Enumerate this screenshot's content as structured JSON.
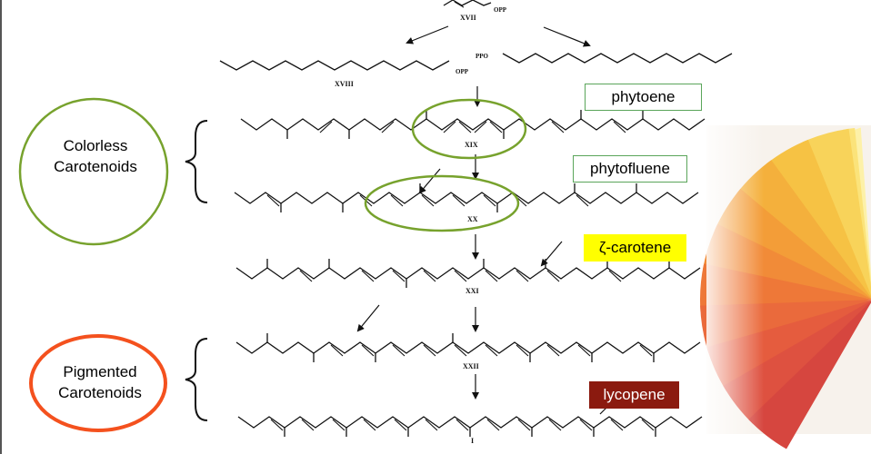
{
  "groups": {
    "colorless": {
      "line1": "Colorless",
      "line2": "Carotenoids",
      "color": "#77a22d"
    },
    "pigmented": {
      "line1": "Pigmented",
      "line2": "Carotenoids",
      "color": "#f4511e"
    }
  },
  "labels": {
    "phytoene": {
      "text": "phytoene",
      "border": "#5aa55a",
      "bg": "#ffffff",
      "fg": "#000000"
    },
    "phytofluene": {
      "text": "phytofluene",
      "border": "#5aa55a",
      "bg": "#ffffff",
      "fg": "#000000"
    },
    "zeta_carotene": {
      "text": "ζ-carotene",
      "border": "#ffff00",
      "bg": "#ffff00",
      "fg": "#000000"
    },
    "lycopene": {
      "text": "lycopene",
      "border": "#8b1a0f",
      "bg": "#8b1a0f",
      "fg": "#ffffff"
    }
  },
  "compounds": {
    "xvii": "XVII",
    "xviii": "XVIII",
    "xix": "XIX",
    "xx": "XX",
    "xxi": "XXI",
    "xxii": "XXII",
    "i": "I"
  },
  "groups_text": {
    "opp_top": "OPP",
    "opp_left": "OPP",
    "ppo": "PPO"
  },
  "highlight_color": "#77a22d",
  "image": "color-fan"
}
